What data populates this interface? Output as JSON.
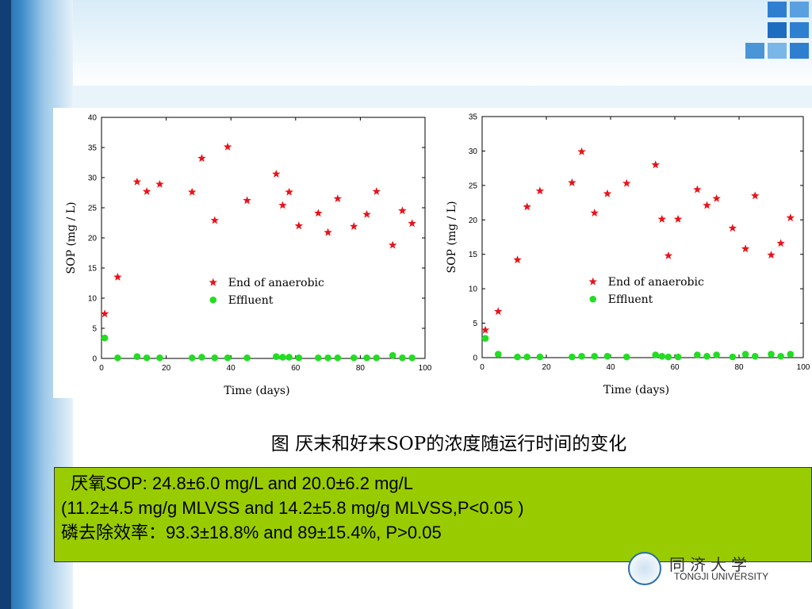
{
  "chart_data": [
    {
      "type": "scatter",
      "title": "",
      "xlabel": "Time (days)",
      "ylabel": "SOP (mg / L)",
      "xlim": [
        0,
        100
      ],
      "ylim": [
        0,
        40
      ],
      "xticks": [
        0,
        20,
        40,
        60,
        80,
        100
      ],
      "yticks": [
        0,
        5,
        10,
        15,
        20,
        25,
        30,
        35,
        40
      ],
      "grid": false,
      "legend_position": "center-right",
      "series": [
        {
          "name": "End of anaerobic",
          "marker": "star",
          "color": "#e8131b",
          "x": [
            1,
            5,
            11,
            14,
            18,
            28,
            31,
            35,
            39,
            45,
            54,
            56,
            58,
            61,
            67,
            70,
            73,
            78,
            82,
            85,
            90,
            93,
            96
          ],
          "y": [
            7.4,
            13.5,
            29.3,
            27.7,
            28.9,
            27.6,
            33.2,
            22.9,
            35.1,
            26.2,
            30.6,
            25.4,
            27.6,
            22.0,
            24.1,
            20.9,
            26.5,
            21.9,
            23.9,
            27.7,
            18.8,
            24.5,
            22.4
          ]
        },
        {
          "name": "Effluent",
          "marker": "circle",
          "color": "#22dd22",
          "x": [
            1,
            5,
            11,
            14,
            18,
            28,
            31,
            35,
            39,
            45,
            54,
            56,
            58,
            61,
            67,
            70,
            73,
            78,
            82,
            85,
            90,
            93,
            96
          ],
          "y": [
            3.4,
            0.1,
            0.3,
            0.1,
            0.1,
            0.1,
            0.2,
            0.1,
            0.1,
            0.1,
            0.3,
            0.2,
            0.2,
            0.1,
            0.1,
            0.1,
            0.1,
            0.1,
            0.1,
            0.1,
            0.5,
            0.1,
            0.1
          ]
        }
      ]
    },
    {
      "type": "scatter",
      "title": "",
      "xlabel": "Time (days)",
      "ylabel": "SOP (mg / L)",
      "xlim": [
        0,
        100
      ],
      "ylim": [
        0,
        35
      ],
      "xticks": [
        0,
        20,
        40,
        60,
        80,
        100
      ],
      "yticks": [
        0,
        5,
        10,
        15,
        20,
        25,
        30,
        35
      ],
      "grid": false,
      "legend_position": "center-right",
      "series": [
        {
          "name": "End of anaerobic",
          "marker": "star",
          "color": "#e8131b",
          "x": [
            1,
            5,
            11,
            14,
            18,
            28,
            31,
            35,
            39,
            45,
            54,
            56,
            58,
            61,
            67,
            70,
            73,
            78,
            82,
            85,
            90,
            93,
            96
          ],
          "y": [
            4.0,
            6.7,
            14.2,
            21.9,
            24.2,
            25.4,
            29.9,
            21.0,
            23.8,
            25.3,
            28.0,
            20.1,
            14.8,
            20.1,
            24.4,
            22.1,
            23.1,
            18.8,
            15.8,
            23.5,
            14.9,
            16.6,
            20.3
          ]
        },
        {
          "name": "Effluent",
          "marker": "circle",
          "color": "#22dd22",
          "x": [
            1,
            5,
            11,
            14,
            18,
            28,
            31,
            35,
            39,
            45,
            54,
            56,
            58,
            61,
            67,
            70,
            73,
            78,
            82,
            85,
            90,
            93,
            96
          ],
          "y": [
            2.8,
            0.5,
            0.1,
            0.1,
            0.1,
            0.1,
            0.2,
            0.2,
            0.2,
            0.1,
            0.4,
            0.2,
            0.1,
            0.1,
            0.4,
            0.2,
            0.4,
            0.1,
            0.5,
            0.2,
            0.5,
            0.2,
            0.5
          ]
        }
      ]
    }
  ],
  "caption": "图 厌末和好末SOP的浓度随运行时间的变化",
  "info": {
    "line1": "  厌氧SOP: 24.8±6.0 mg/L and 20.0±6.2 mg/L",
    "line2": "(11.2±4.5 mg/g MLVSS and 14.2±5.8 mg/g MLVSS,P<0.05 )",
    "line3": "磷去除效率：93.3±18.8% and 89±15.4%, P>0.05"
  },
  "logo": {
    "cn": "同济大学",
    "en": "TONGJI UNIVERSITY"
  }
}
